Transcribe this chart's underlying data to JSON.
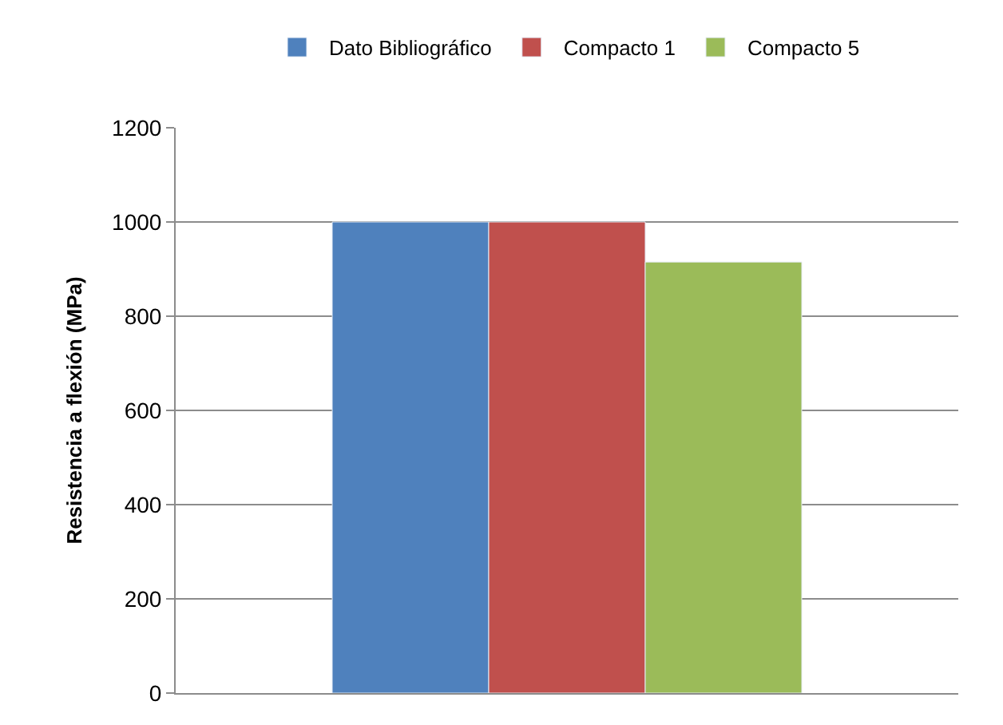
{
  "chart_data": {
    "type": "bar",
    "ylabel": "Resistencia a flexión (MPa)",
    "categories": [
      null
    ],
    "series": [
      {
        "name": "Dato Bibliográfico",
        "color": "#4f81bd",
        "values": [
          1000
        ]
      },
      {
        "name": "Compacto 1",
        "color": "#c0504d",
        "values": [
          1000
        ]
      },
      {
        "name": "Compacto 5",
        "color": "#9bbb59",
        "values": [
          915
        ]
      }
    ],
    "ylim": [
      0,
      1200
    ],
    "yticks": [
      0,
      200,
      400,
      600,
      800,
      1000,
      1200
    ],
    "grid": "y",
    "legend": "top"
  }
}
